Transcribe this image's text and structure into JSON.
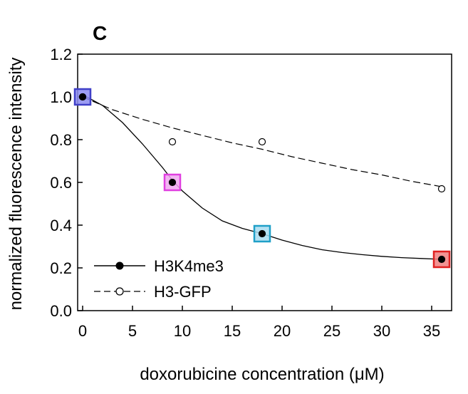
{
  "chart_data": {
    "type": "line",
    "panel_label": "C",
    "xlabel": "doxorubicine concentration (μM)",
    "ylabel": "normalized fluorescence intensity",
    "xlim": [
      -0.5,
      37
    ],
    "ylim": [
      0,
      1.2
    ],
    "xticks": [
      0,
      5,
      10,
      15,
      20,
      25,
      30,
      35
    ],
    "yticks": [
      0.0,
      0.2,
      0.4,
      0.6,
      0.8,
      1.0,
      1.2
    ],
    "ytick_labels": [
      "0.0",
      "0.2",
      "0.4",
      "0.6",
      "0.8",
      "1.0",
      "1.2"
    ],
    "grid": false,
    "legend_position": "bottom-left",
    "series": [
      {
        "name": "H3K4me3",
        "marker": "filled-circle",
        "line": "solid",
        "x": [
          0,
          9,
          18,
          36
        ],
        "y": [
          1.0,
          0.6,
          0.36,
          0.24
        ],
        "fit": {
          "x": [
            0,
            2,
            4,
            6,
            8,
            9,
            10,
            12,
            14,
            16,
            18,
            20,
            22,
            24,
            26,
            28,
            30,
            32,
            34,
            36
          ],
          "y": [
            1.01,
            0.96,
            0.88,
            0.78,
            0.67,
            0.61,
            0.56,
            0.48,
            0.42,
            0.385,
            0.36,
            0.33,
            0.305,
            0.285,
            0.272,
            0.262,
            0.254,
            0.248,
            0.244,
            0.24
          ]
        }
      },
      {
        "name": "H3-GFP",
        "marker": "open-circle",
        "line": "dashed",
        "x": [
          0,
          9,
          18,
          36
        ],
        "y": [
          1.0,
          0.79,
          0.79,
          0.57
        ],
        "fit": {
          "x": [
            0,
            3,
            6,
            9,
            12,
            15,
            18,
            21,
            24,
            27,
            30,
            33,
            36
          ],
          "y": [
            1.0,
            0.94,
            0.895,
            0.855,
            0.82,
            0.785,
            0.755,
            0.72,
            0.69,
            0.66,
            0.635,
            0.605,
            0.58
          ]
        }
      }
    ],
    "highlight_boxes": [
      {
        "x": 0,
        "y": 1.0,
        "color": "#4040c8"
      },
      {
        "x": 9,
        "y": 0.6,
        "color": "#e040e0"
      },
      {
        "x": 18,
        "y": 0.36,
        "color": "#20a0c8"
      },
      {
        "x": 36,
        "y": 0.24,
        "color": "#e02020"
      }
    ],
    "highlight_fills": [
      "#8c8cf0",
      "#f0a8f0",
      "#a8dcf0",
      "#f08080"
    ]
  }
}
